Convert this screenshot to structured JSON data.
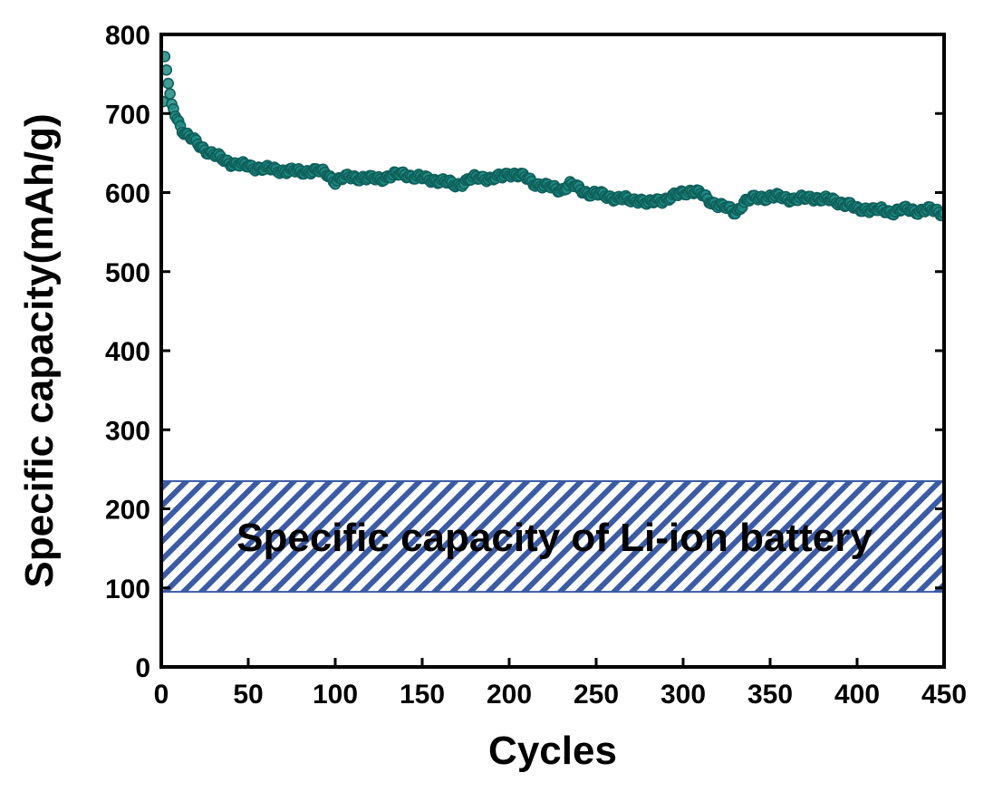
{
  "chart_data": {
    "type": "scatter",
    "title": "",
    "xlabel": "Cycles",
    "ylabel": "Specific capacity(mAh/g)",
    "xlim": [
      0,
      450
    ],
    "ylim": [
      0,
      800
    ],
    "xticks": [
      0,
      50,
      100,
      150,
      200,
      250,
      300,
      350,
      400,
      450
    ],
    "yticks": [
      0,
      100,
      200,
      300,
      400,
      500,
      600,
      700,
      800
    ],
    "grid": false,
    "marker_color": "#1e8b84",
    "marker_edge_color": "#0f5f5a",
    "series": [
      {
        "name": "Specific capacity",
        "anchors_x": [
          1,
          2,
          3,
          4,
          5,
          6,
          8,
          10,
          12,
          15,
          20,
          25,
          30,
          35,
          40,
          45,
          50,
          55,
          60,
          65,
          70,
          75,
          80,
          85,
          90,
          95,
          100,
          105,
          110,
          115,
          120,
          125,
          130,
          135,
          140,
          145,
          150,
          155,
          160,
          165,
          170,
          175,
          180,
          185,
          190,
          195,
          200,
          205,
          210,
          215,
          220,
          225,
          230,
          235,
          240,
          245,
          250,
          255,
          260,
          265,
          270,
          275,
          280,
          285,
          290,
          295,
          300,
          305,
          310,
          315,
          320,
          325,
          330,
          335,
          340,
          345,
          350,
          355,
          360,
          365,
          370,
          375,
          380,
          385,
          390,
          395,
          400,
          405,
          410,
          415,
          420,
          425,
          430,
          435,
          440,
          445,
          450
        ],
        "anchors_y": [
          715,
          772,
          755,
          738,
          725,
          712,
          700,
          690,
          680,
          672,
          663,
          655,
          648,
          642,
          638,
          635,
          633,
          632,
          630,
          629,
          628,
          627,
          626,
          628,
          627,
          624,
          615,
          618,
          620,
          619,
          617,
          618,
          620,
          622,
          624,
          620,
          618,
          617,
          615,
          612,
          610,
          614,
          618,
          620,
          617,
          619,
          625,
          622,
          618,
          612,
          608,
          606,
          604,
          610,
          605,
          600,
          598,
          596,
          594,
          592,
          590,
          592,
          585,
          590,
          592,
          595,
          600,
          603,
          598,
          590,
          585,
          580,
          575,
          588,
          592,
          594,
          595,
          594,
          593,
          592,
          592,
          594,
          592,
          590,
          588,
          585,
          578,
          580,
          578,
          577,
          576,
          578,
          578,
          577,
          578,
          577,
          574
        ]
      }
    ],
    "annotation": {
      "label": "Specific capacity of Li-ion battery",
      "y_range": [
        95,
        235
      ],
      "fill_color": "#3b5ba5"
    }
  }
}
